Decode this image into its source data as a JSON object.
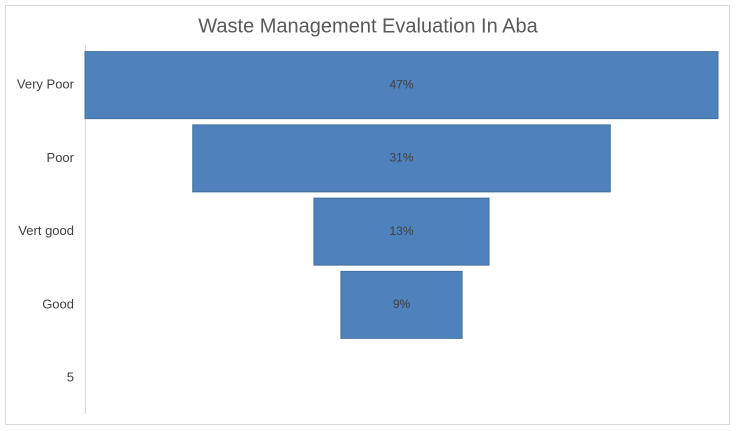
{
  "chart_data": {
    "type": "funnel",
    "title": "Waste Management Evaluation In Aba",
    "categories": [
      "Very Poor",
      "Poor",
      "Vert good",
      "Good",
      "5"
    ],
    "values": [
      47,
      31,
      13,
      9,
      null
    ],
    "value_labels": [
      "47%",
      "31%",
      "13%",
      "9%",
      null
    ],
    "color": "#4f81bd"
  }
}
